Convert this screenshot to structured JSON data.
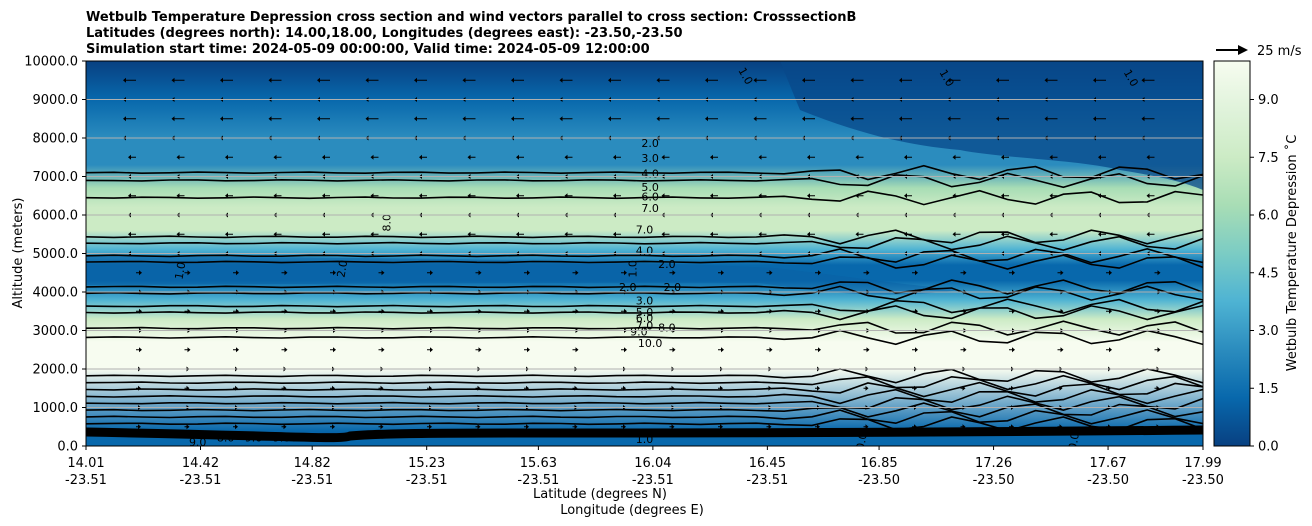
{
  "chart_data": {
    "type": "contour",
    "title_lines": [
      "Wetbulb Temperature Depression cross section and wind vectors parallel to cross section: CrosssectionB",
      "Latitudes (degrees north): 14.00,18.00, Longitudes (degrees east): -23.50,-23.50",
      "Simulation start time: 2024-05-09 00:00:00, Valid time: 2024-05-09 12:00:00"
    ],
    "ylabel": "Altitude (meters)",
    "xlabel_lat": "Latitude (degrees N)",
    "xlabel_lon": "Longitude (degrees E)",
    "ylim": [
      0,
      10000
    ],
    "yticks": [
      "0.0",
      "1000.0",
      "2000.0",
      "3000.0",
      "4000.0",
      "5000.0",
      "6000.0",
      "7000.0",
      "8000.0",
      "9000.0",
      "10000.0"
    ],
    "xticks": [
      {
        "lat": "14.01",
        "lon": "-23.51",
        "frac": 0.0
      },
      {
        "lat": "14.42",
        "lon": "-23.51",
        "frac": 0.1025
      },
      {
        "lat": "14.82",
        "lon": "-23.51",
        "frac": 0.2025
      },
      {
        "lat": "15.23",
        "lon": "-23.51",
        "frac": 0.305
      },
      {
        "lat": "15.63",
        "lon": "-23.51",
        "frac": 0.405
      },
      {
        "lat": "16.04",
        "lon": "-23.51",
        "frac": 0.5075
      },
      {
        "lat": "16.45",
        "lon": "-23.51",
        "frac": 0.61
      },
      {
        "lat": "16.85",
        "lon": "-23.50",
        "frac": 0.71
      },
      {
        "lat": "17.26",
        "lon": "-23.50",
        "frac": 0.8125
      },
      {
        "lat": "17.67",
        "lon": "-23.50",
        "frac": 0.915
      },
      {
        "lat": "17.99",
        "lon": "-23.50",
        "frac": 1.0
      }
    ],
    "colorbar": {
      "label": "Wetbulb Temperature Depression ˚C",
      "range": [
        0,
        10
      ],
      "ticks": [
        "0.0",
        "1.5",
        "3.0",
        "4.5",
        "6.0",
        "7.5",
        "9.0"
      ],
      "tick_values": [
        0,
        1.5,
        3,
        4.5,
        6,
        7.5,
        9
      ],
      "colors": [
        "#084081",
        "#0868ac",
        "#2b8cbe",
        "#4eb3d3",
        "#7bccc4",
        "#a8ddb5",
        "#ccebc5",
        "#e0f3db",
        "#f7fcf0"
      ]
    },
    "quiver_key": "25 m/s",
    "profile": [
      {
        "alt": 0,
        "value": 0.5
      },
      {
        "alt": 400,
        "value": 1.0
      },
      {
        "alt": 2000,
        "value": 10.0
      },
      {
        "alt": 2700,
        "value": 9.5
      },
      {
        "alt": 3300,
        "value": 7.0
      },
      {
        "alt": 3800,
        "value": 4.0
      },
      {
        "alt": 4300,
        "value": 1.0
      },
      {
        "alt": 4700,
        "value": 1.5
      },
      {
        "alt": 5100,
        "value": 4.0
      },
      {
        "alt": 5600,
        "value": 7.0
      },
      {
        "alt": 6200,
        "value": 8.0
      },
      {
        "alt": 6700,
        "value": 6.0
      },
      {
        "alt": 7300,
        "value": 3.0
      },
      {
        "alt": 8000,
        "value": 2.0
      },
      {
        "alt": 9000,
        "value": 1.0
      },
      {
        "alt": 10000,
        "value": 0.6
      }
    ],
    "contour_labels": [
      {
        "text": "1.0",
        "x": 0.59,
        "alt": 9600,
        "rot": 60
      },
      {
        "text": "1.0",
        "x": 0.77,
        "alt": 9550,
        "rot": 60
      },
      {
        "text": "1.0",
        "x": 0.935,
        "alt": 9550,
        "rot": 60
      },
      {
        "text": "2.0",
        "x": 0.505,
        "alt": 7850,
        "rot": 0
      },
      {
        "text": "3.0",
        "x": 0.505,
        "alt": 7450,
        "rot": 0
      },
      {
        "text": "4.0",
        "x": 0.505,
        "alt": 7050,
        "rot": 0
      },
      {
        "text": "5.0",
        "x": 0.505,
        "alt": 6700,
        "rot": 0
      },
      {
        "text": "6.0",
        "x": 0.505,
        "alt": 6450,
        "rot": 0
      },
      {
        "text": "7.0",
        "x": 0.505,
        "alt": 6150,
        "rot": 0
      },
      {
        "text": "8.0",
        "x": 0.27,
        "alt": 5800,
        "rot": -90
      },
      {
        "text": "7.0",
        "x": 0.5,
        "alt": 5600,
        "rot": 0
      },
      {
        "text": "4.0",
        "x": 0.5,
        "alt": 5050,
        "rot": 0
      },
      {
        "text": "2.0",
        "x": 0.52,
        "alt": 4700,
        "rot": 0
      },
      {
        "text": "1.0",
        "x": 0.49,
        "alt": 4600,
        "rot": -90
      },
      {
        "text": "1.0",
        "x": 0.085,
        "alt": 4550,
        "rot": -80
      },
      {
        "text": "2.0",
        "x": 0.23,
        "alt": 4600,
        "rot": -80
      },
      {
        "text": "2.0",
        "x": 0.485,
        "alt": 4100,
        "rot": 0
      },
      {
        "text": "2.0",
        "x": 0.525,
        "alt": 4100,
        "rot": 0
      },
      {
        "text": "3.0",
        "x": 0.5,
        "alt": 3750,
        "rot": 0
      },
      {
        "text": "5.0",
        "x": 0.5,
        "alt": 3450,
        "rot": 0
      },
      {
        "text": "6.0",
        "x": 0.5,
        "alt": 3300,
        "rot": 0
      },
      {
        "text": "7.0",
        "x": 0.5,
        "alt": 3100,
        "rot": 0
      },
      {
        "text": "8.0",
        "x": 0.52,
        "alt": 3050,
        "rot": 0
      },
      {
        "text": "9.0",
        "x": 0.495,
        "alt": 2950,
        "rot": 0
      },
      {
        "text": "10.0",
        "x": 0.505,
        "alt": 2650,
        "rot": 0
      },
      {
        "text": "9.0",
        "x": 0.1,
        "alt": 80,
        "rot": 0
      },
      {
        "text": "8.0",
        "x": 0.125,
        "alt": 200,
        "rot": 0
      },
      {
        "text": "9.0",
        "x": 0.15,
        "alt": 200,
        "rot": 0
      },
      {
        "text": "9.0",
        "x": 0.175,
        "alt": 200,
        "rot": 0
      },
      {
        "text": "10.0",
        "x": 0.195,
        "alt": 200,
        "rot": 0
      },
      {
        "text": "0.0",
        "x": 0.215,
        "alt": 200,
        "rot": 0
      },
      {
        "text": "0.0",
        "x": 0.5,
        "alt": 300,
        "rot": 0
      },
      {
        "text": "1.0",
        "x": 0.5,
        "alt": 150,
        "rot": 0
      },
      {
        "text": "0.0",
        "x": 0.695,
        "alt": 120,
        "rot": -80
      },
      {
        "text": "0.0",
        "x": 0.885,
        "alt": 120,
        "rot": -80
      }
    ],
    "contour_levels": [
      1,
      2,
      3,
      4,
      5,
      6,
      7,
      8,
      9,
      10
    ]
  }
}
